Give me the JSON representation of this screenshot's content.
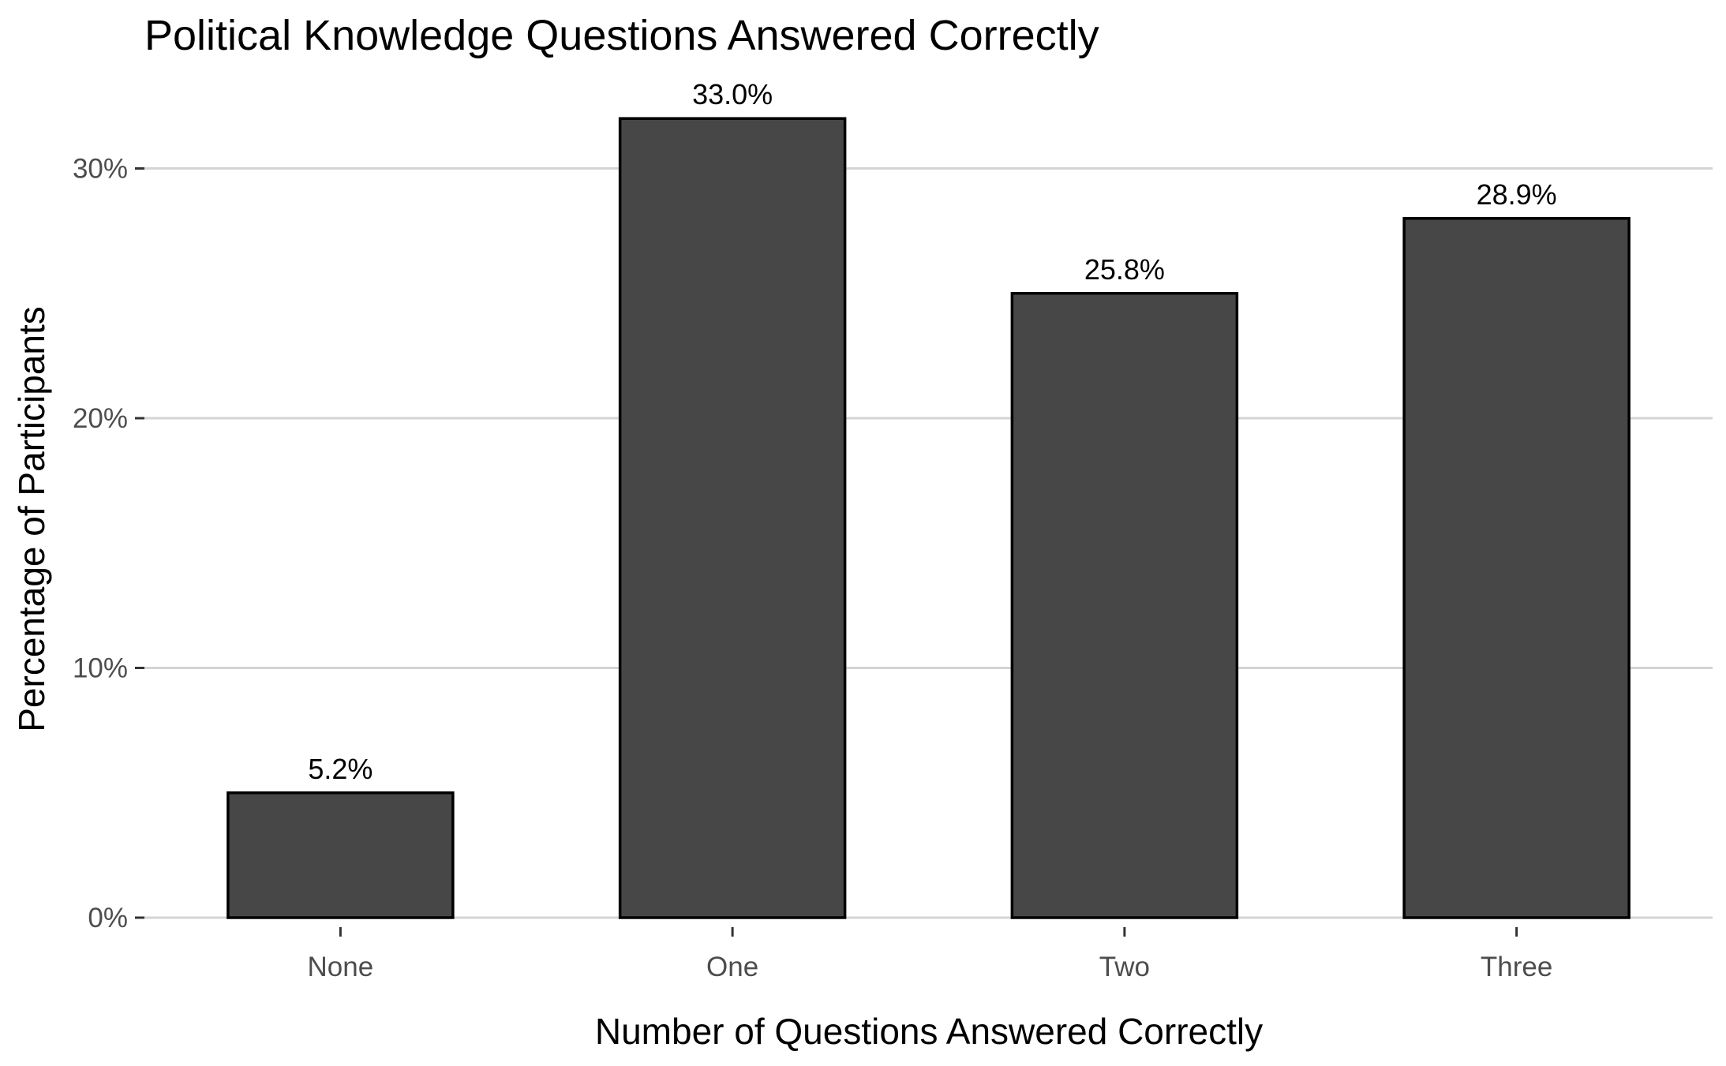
{
  "chart_data": {
    "type": "bar",
    "title": "Political Knowledge Questions Answered Correctly",
    "xlabel": "Number of Questions Answered Correctly",
    "ylabel": "Percentage of Participants",
    "categories": [
      "None",
      "One",
      "Two",
      "Three"
    ],
    "values": [
      5.0,
      32.0,
      25.0,
      28.0
    ],
    "data_labels": [
      "5.2%",
      "33.0%",
      "25.8%",
      "28.9%"
    ],
    "y_ticks": [
      0,
      10,
      20,
      30
    ],
    "y_tick_labels": [
      "0%",
      "10%",
      "20%",
      "30%"
    ],
    "ylim": [
      0,
      33.6
    ],
    "grid": "horizontal major",
    "legend": "none",
    "colors": {
      "bar_fill": "#474747",
      "bar_outline": "#000000",
      "grid": "#d4d4d4"
    }
  }
}
